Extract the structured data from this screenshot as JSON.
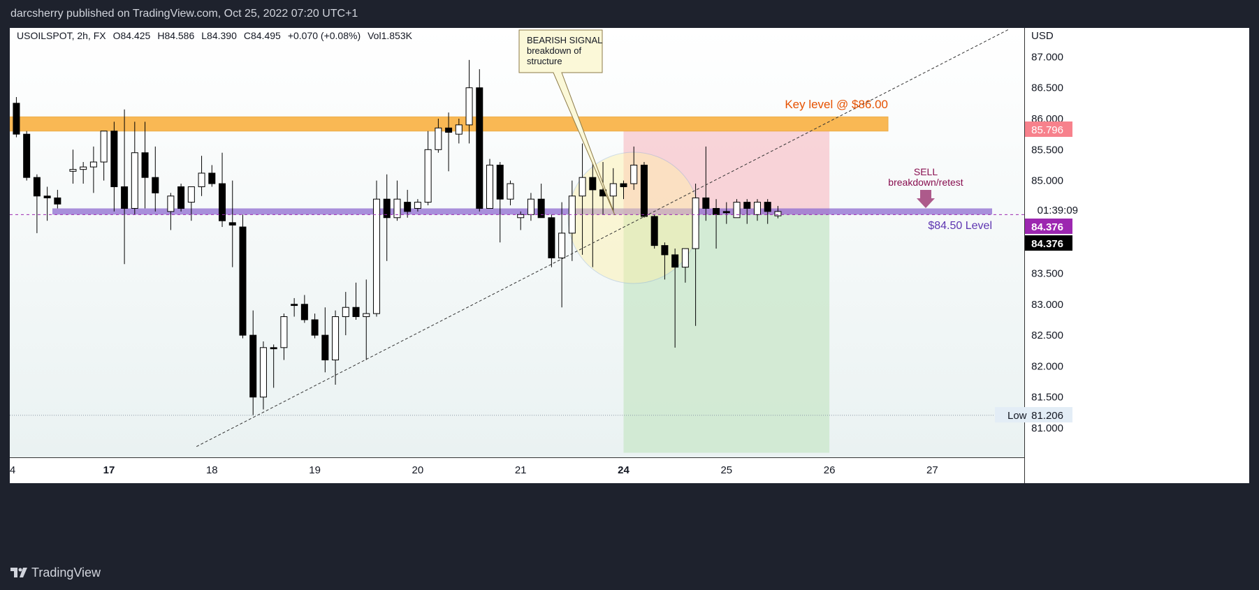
{
  "header": {
    "published_by": "darcsherry published on TradingView.com, Oct 25, 2022 07:20 UTC+1"
  },
  "legend": {
    "symbol": "USOILSPOT, 2h, FX",
    "open": "O84.425",
    "high": "H84.586",
    "low": "L84.390",
    "close": "C84.495",
    "change": "+0.070 (+0.08%)",
    "volume": "Vol1.853K"
  },
  "footer": {
    "brand": "TradingView"
  },
  "colors": {
    "up_candle": "#ffffff",
    "down_candle": "#000000",
    "key_level_zone": "#f9a82b",
    "support_zone": "#8e6bd0",
    "stop_zone": "#f7c9cf",
    "target_zone": "#cfe9d0",
    "key_level_text": "#e65100",
    "support_text": "#5e35b1",
    "sell_text": "#880e4f",
    "sell_arrow": "#ad5a8b"
  },
  "chart_data": {
    "type": "candlestick",
    "currency_label": "USD",
    "ylim": [
      80.6,
      87.6
    ],
    "y_ticks": [
      "87.000",
      "86.500",
      "86.000",
      "85.500",
      "85.000",
      "83.500",
      "83.000",
      "82.500",
      "82.000",
      "81.500",
      "81.000"
    ],
    "x_ticks": [
      "4",
      "17",
      "18",
      "19",
      "20",
      "21",
      "24",
      "25",
      "26",
      "27"
    ],
    "x_tick_positions": [
      -1,
      1,
      2,
      3,
      4,
      5,
      6,
      7,
      8,
      9
    ],
    "bold_x_ticks": [
      "17",
      "24"
    ],
    "candles": [
      [
        -0.1,
        87.5,
        87.7,
        87.2,
        87.3
      ],
      [
        0.0,
        87.3,
        87.4,
        86.2,
        86.25
      ],
      [
        0.1,
        86.25,
        86.35,
        85.7,
        85.75
      ],
      [
        0.2,
        85.75,
        85.8,
        85.0,
        85.05
      ],
      [
        0.3,
        85.05,
        85.1,
        84.15,
        84.75
      ],
      [
        0.4,
        84.75,
        84.9,
        84.35,
        84.72
      ],
      [
        0.5,
        84.72,
        84.85,
        84.55,
        84.62
      ],
      [
        0.65,
        85.15,
        85.5,
        84.95,
        85.18
      ],
      [
        0.75,
        85.18,
        85.3,
        84.95,
        85.22
      ],
      [
        0.85,
        85.22,
        85.55,
        84.8,
        85.3
      ],
      [
        0.95,
        85.3,
        85.8,
        85.0,
        85.8
      ],
      [
        1.05,
        85.8,
        85.95,
        84.5,
        84.9
      ],
      [
        1.15,
        84.9,
        86.15,
        83.65,
        84.55
      ],
      [
        1.25,
        84.55,
        85.95,
        84.45,
        85.45
      ],
      [
        1.35,
        85.45,
        85.95,
        84.55,
        85.05
      ],
      [
        1.45,
        85.05,
        85.55,
        84.5,
        84.8
      ],
      [
        1.6,
        84.5,
        84.8,
        84.2,
        84.75
      ],
      [
        1.7,
        84.9,
        84.95,
        84.5,
        84.55
      ],
      [
        1.8,
        84.65,
        84.9,
        84.35,
        84.9
      ],
      [
        1.9,
        84.9,
        85.4,
        84.75,
        85.12
      ],
      [
        2.0,
        85.12,
        85.25,
        84.9,
        84.95
      ],
      [
        2.1,
        84.95,
        85.45,
        84.25,
        84.35
      ],
      [
        2.2,
        84.32,
        85.0,
        83.6,
        84.28
      ],
      [
        2.3,
        84.25,
        84.45,
        82.45,
        82.5
      ],
      [
        2.4,
        82.5,
        82.9,
        81.2,
        81.5
      ],
      [
        2.5,
        81.5,
        82.4,
        81.3,
        82.3
      ],
      [
        2.6,
        82.3,
        82.35,
        81.65,
        82.28
      ],
      [
        2.7,
        82.3,
        82.85,
        82.1,
        82.8
      ],
      [
        2.8,
        83.0,
        83.1,
        82.8,
        82.98
      ],
      [
        2.9,
        83.0,
        83.15,
        82.7,
        82.75
      ],
      [
        3.0,
        82.75,
        82.85,
        82.45,
        82.5
      ],
      [
        3.1,
        82.5,
        82.95,
        81.9,
        82.1
      ],
      [
        3.2,
        82.1,
        82.9,
        81.7,
        82.8
      ],
      [
        3.3,
        82.8,
        83.2,
        82.5,
        82.95
      ],
      [
        3.4,
        82.95,
        83.35,
        82.75,
        82.8
      ],
      [
        3.5,
        82.8,
        83.4,
        82.1,
        82.85
      ],
      [
        3.6,
        82.85,
        85.0,
        82.8,
        84.7
      ],
      [
        3.7,
        84.7,
        85.1,
        83.7,
        84.4
      ],
      [
        3.8,
        84.4,
        85.0,
        84.35,
        84.7
      ],
      [
        3.9,
        84.65,
        84.85,
        84.4,
        84.5
      ],
      [
        4.0,
        84.55,
        84.7,
        84.5,
        84.65
      ],
      [
        4.1,
        84.65,
        85.8,
        84.6,
        85.5
      ],
      [
        4.2,
        85.5,
        86.0,
        85.45,
        85.85
      ],
      [
        4.3,
        85.85,
        86.1,
        85.15,
        85.78
      ],
      [
        4.4,
        85.75,
        86.0,
        85.6,
        85.9
      ],
      [
        4.5,
        85.9,
        86.95,
        85.6,
        86.5
      ],
      [
        4.6,
        86.5,
        86.8,
        84.5,
        84.55
      ],
      [
        4.7,
        84.55,
        85.35,
        84.55,
        85.25
      ],
      [
        4.8,
        85.25,
        85.3,
        84.0,
        84.7
      ],
      [
        4.9,
        84.7,
        85.0,
        84.6,
        84.95
      ],
      [
        5.0,
        84.4,
        84.5,
        84.2,
        84.45
      ],
      [
        5.1,
        84.45,
        84.8,
        84.35,
        84.7
      ],
      [
        5.2,
        84.7,
        84.95,
        84.4,
        84.4
      ],
      [
        5.3,
        84.4,
        84.45,
        83.6,
        83.75
      ],
      [
        5.4,
        83.75,
        84.65,
        82.95,
        84.15
      ],
      [
        5.5,
        84.15,
        85.0,
        83.7,
        84.75
      ],
      [
        5.6,
        84.75,
        85.6,
        83.8,
        85.05
      ],
      [
        5.7,
        85.05,
        85.4,
        83.6,
        84.85
      ],
      [
        5.8,
        84.85,
        85.3,
        84.45,
        84.75
      ],
      [
        5.9,
        84.75,
        85.2,
        84.5,
        84.95
      ],
      [
        6.0,
        84.95,
        85.0,
        84.7,
        84.9
      ],
      [
        6.1,
        84.95,
        85.55,
        84.85,
        85.25
      ],
      [
        6.2,
        85.25,
        85.3,
        84.4,
        84.42
      ],
      [
        6.3,
        84.42,
        84.45,
        83.9,
        83.95
      ],
      [
        6.4,
        83.95,
        84.0,
        83.4,
        83.8
      ],
      [
        6.5,
        83.8,
        83.9,
        82.3,
        83.6
      ],
      [
        6.6,
        83.6,
        83.9,
        83.35,
        83.9
      ],
      [
        6.7,
        83.9,
        84.95,
        82.65,
        84.72
      ],
      [
        6.8,
        84.72,
        85.55,
        84.35,
        84.55
      ],
      [
        6.9,
        84.55,
        84.7,
        83.9,
        84.45
      ],
      [
        7.0,
        84.5,
        84.65,
        84.3,
        84.48
      ],
      [
        7.1,
        84.4,
        84.7,
        84.4,
        84.65
      ],
      [
        7.2,
        84.65,
        84.7,
        84.3,
        84.55
      ],
      [
        7.3,
        84.45,
        84.7,
        84.35,
        84.65
      ],
      [
        7.4,
        84.65,
        84.7,
        84.3,
        84.5
      ],
      [
        7.5,
        84.43,
        84.59,
        84.39,
        84.5
      ]
    ],
    "price_labels": {
      "stop_price": "85.796",
      "countdown": "01:39:09",
      "entry_price": "84.376",
      "last_price": "84.376",
      "low_label": "Low",
      "low_price": "81.206"
    },
    "annotations": {
      "key_level_label": "Key level @ $86.00",
      "key_level_zone": [
        85.8,
        86.03
      ],
      "support_label": "$84.50 Level",
      "support_zone": [
        84.45,
        84.55
      ],
      "sell_line1": "SELL",
      "sell_line2": "breakdown/retest",
      "callout_lines": [
        "BEARISH SIGNAL",
        "breakdown of",
        "structure"
      ],
      "trendline": [
        [
          1.85,
          80.7
        ],
        [
          9.75,
          87.45
        ]
      ],
      "position": {
        "x_start": 6.0,
        "x_end": 8.0,
        "entry": 84.45,
        "stop": 85.8,
        "target": 80.6
      },
      "dashed_price": 84.45,
      "low_line_price": 81.206
    }
  }
}
